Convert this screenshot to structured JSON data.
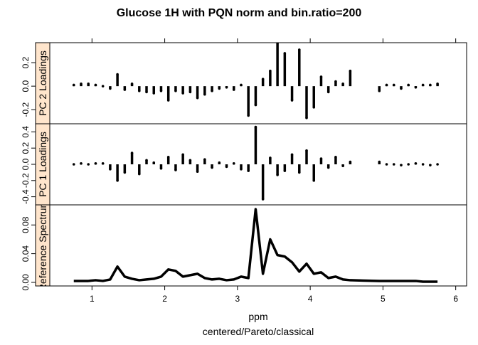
{
  "title": "Glucose 1H with PQN norm and bin.ratio=200",
  "xlabel": "ppm",
  "sublabel": "centered/Pareto/classical",
  "chart_data": [
    {
      "type": "stem",
      "strip": "PC 2 Loadings",
      "color": "#000000",
      "xlim": [
        0.42,
        6.15
      ],
      "xticks": [
        1,
        2,
        3,
        4,
        5,
        6
      ],
      "ylim": [
        -0.32,
        0.37
      ],
      "yticks": [
        -0.2,
        {
          "value": 0,
          "label": "0.0"
        },
        0.2
      ],
      "x": [
        0.75,
        0.85,
        0.95,
        1.05,
        1.15,
        1.25,
        1.35,
        1.45,
        1.55,
        1.65,
        1.75,
        1.85,
        1.95,
        2.05,
        2.15,
        2.25,
        2.35,
        2.45,
        2.55,
        2.65,
        2.75,
        2.85,
        2.95,
        3.05,
        3.15,
        3.25,
        3.35,
        3.45,
        3.55,
        3.65,
        3.75,
        3.85,
        3.95,
        4.05,
        4.15,
        4.25,
        4.35,
        4.45,
        4.55,
        4.95,
        5.05,
        5.15,
        5.25,
        5.35,
        5.45,
        5.55,
        5.65,
        5.75
      ],
      "values": [
        0.01,
        0.02,
        0.02,
        0.01,
        0.0,
        -0.02,
        0.1,
        -0.03,
        0.02,
        -0.04,
        -0.05,
        -0.06,
        -0.04,
        -0.12,
        -0.04,
        -0.06,
        -0.05,
        -0.1,
        -0.07,
        -0.04,
        -0.02,
        -0.01,
        -0.03,
        0.01,
        -0.25,
        -0.16,
        0.06,
        0.13,
        0.37,
        0.28,
        -0.12,
        0.31,
        -0.27,
        -0.18,
        0.08,
        -0.05,
        0.04,
        0.02,
        0.13,
        -0.04,
        0.01,
        0.01,
        -0.02,
        0.01,
        -0.01,
        0.01,
        0.01,
        0.02
      ]
    },
    {
      "type": "stem",
      "strip": "PC 1 Loadings",
      "color": "#000000",
      "xlim": [
        0.42,
        6.15
      ],
      "ylim": [
        -0.5,
        0.5
      ],
      "yticks": [
        -0.4,
        -0.2,
        {
          "value": 0,
          "label": "0.0"
        },
        0.2,
        0.4
      ],
      "x": [
        0.75,
        0.85,
        0.95,
        1.05,
        1.15,
        1.25,
        1.35,
        1.45,
        1.55,
        1.65,
        1.75,
        1.85,
        1.95,
        2.05,
        2.15,
        2.25,
        2.35,
        2.45,
        2.55,
        2.65,
        2.75,
        2.85,
        2.95,
        3.05,
        3.15,
        3.25,
        3.35,
        3.45,
        3.55,
        3.65,
        3.75,
        3.85,
        3.95,
        4.05,
        4.15,
        4.25,
        4.35,
        4.45,
        4.55,
        4.95,
        5.05,
        5.15,
        5.25,
        5.35,
        5.45,
        5.55,
        5.65,
        5.75
      ],
      "values": [
        0,
        0.01,
        0,
        0.01,
        0.01,
        -0.06,
        -0.2,
        -0.1,
        0.14,
        -0.12,
        0.05,
        0.02,
        -0.05,
        0.09,
        -0.07,
        0.12,
        0.05,
        -0.09,
        0.06,
        -0.04,
        0.02,
        -0.03,
        0.01,
        -0.06,
        -0.08,
        0.46,
        -0.43,
        0.08,
        -0.13,
        -0.08,
        0.12,
        -0.1,
        0.17,
        -0.2,
        0.07,
        -0.04,
        0.09,
        -0.02,
        0.03,
        0.03,
        0,
        0,
        -0.01,
        0,
        0.01,
        0,
        -0.01,
        0
      ]
    },
    {
      "type": "line",
      "strip": "Reference Spectrum",
      "color": "#000000",
      "xlim": [
        0.42,
        6.15
      ],
      "xticks": [
        1,
        2,
        3,
        4,
        5,
        6
      ],
      "ylim": [
        -0.005,
        0.108
      ],
      "yticks": [
        {
          "value": 0,
          "label": "0.00"
        },
        0.04,
        0.08
      ],
      "x": [
        0.75,
        0.85,
        0.95,
        1.05,
        1.15,
        1.25,
        1.35,
        1.45,
        1.55,
        1.65,
        1.75,
        1.85,
        1.95,
        2.05,
        2.15,
        2.25,
        2.35,
        2.45,
        2.55,
        2.65,
        2.75,
        2.85,
        2.95,
        3.05,
        3.15,
        3.25,
        3.35,
        3.45,
        3.55,
        3.65,
        3.75,
        3.85,
        3.95,
        4.05,
        4.15,
        4.25,
        4.35,
        4.45,
        4.55,
        4.95,
        5.05,
        5.15,
        5.25,
        5.35,
        5.45,
        5.55,
        5.65,
        5.75
      ],
      "values": [
        0.002,
        0.002,
        0.002,
        0.003,
        0.002,
        0.004,
        0.022,
        0.008,
        0.005,
        0.003,
        0.004,
        0.005,
        0.008,
        0.018,
        0.016,
        0.008,
        0.01,
        0.012,
        0.006,
        0.004,
        0.005,
        0.003,
        0.004,
        0.008,
        0.006,
        0.102,
        0.012,
        0.06,
        0.038,
        0.036,
        0.028,
        0.015,
        0.026,
        0.012,
        0.014,
        0.006,
        0.008,
        0.004,
        0.003,
        0.002,
        0.002,
        0.002,
        0.002,
        0.002,
        0.002,
        0.001,
        0.001,
        0.001
      ]
    }
  ]
}
